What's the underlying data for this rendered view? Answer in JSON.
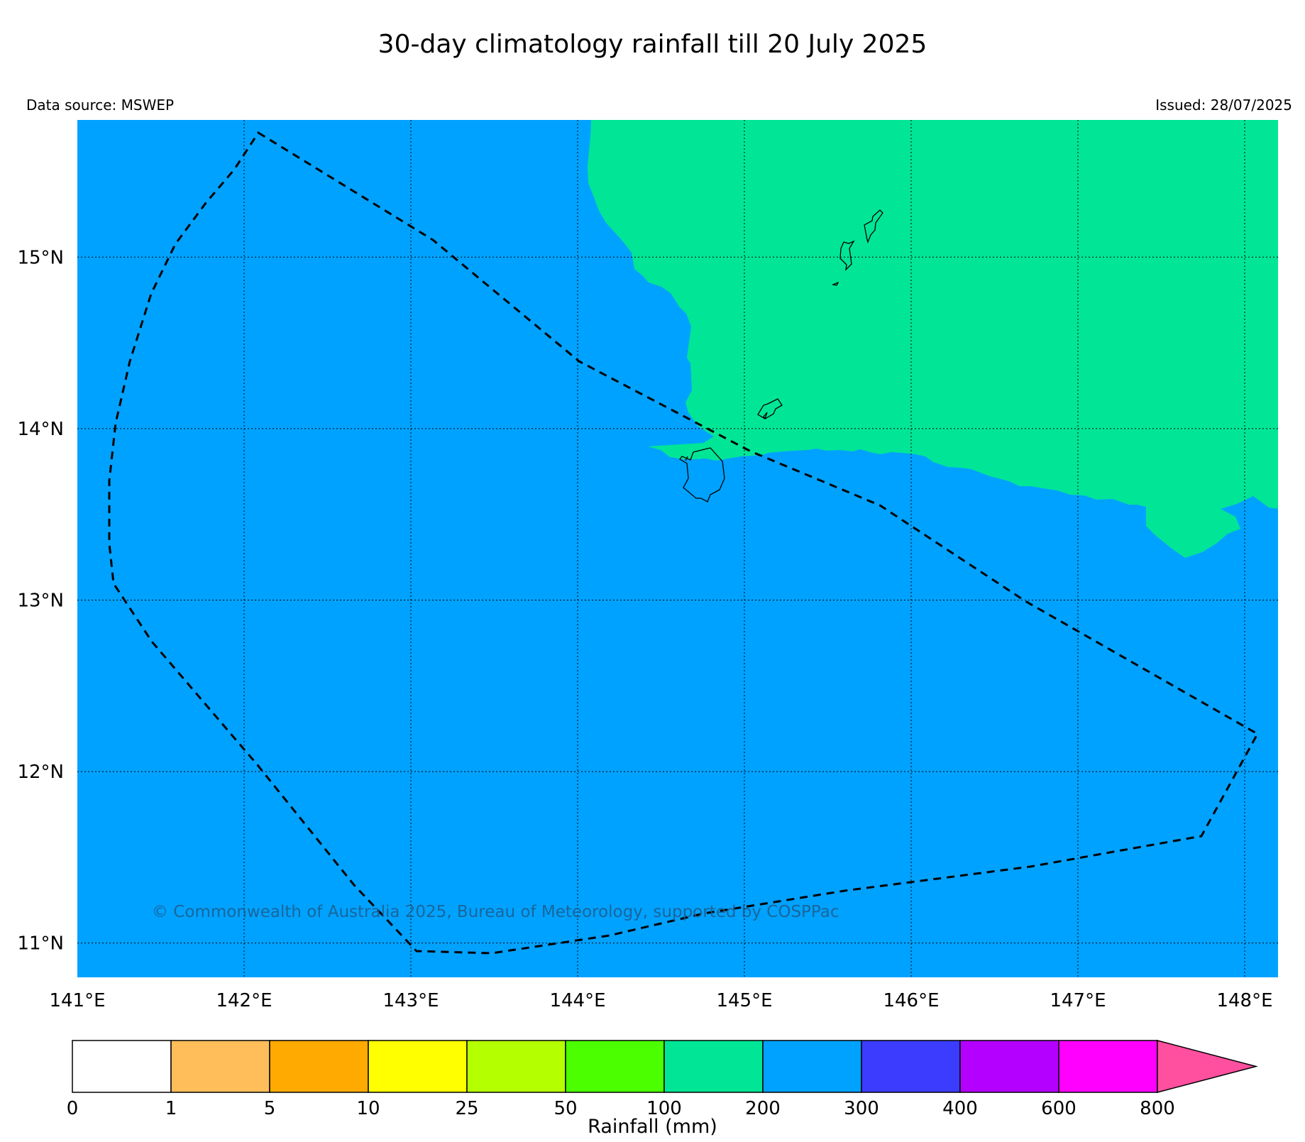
{
  "header": {
    "title": "30-day climatology rainfall till 20 July 2025",
    "data_source": "Data source: MSWEP",
    "issued": "Issued: 28/07/2025"
  },
  "map": {
    "lon_range": [
      141,
      148.2
    ],
    "lat_range": [
      10.8,
      15.8
    ],
    "lat_ticks": [
      "15°N",
      "14°N",
      "13°N",
      "12°N",
      "11°N"
    ],
    "lon_ticks": [
      "141°E",
      "142°E",
      "143°E",
      "144°E",
      "145°E",
      "146°E",
      "147°E",
      "148°E"
    ],
    "fill_colors": {
      "zone_200_300": "#00a2ff",
      "zone_100_200": "#00e696"
    },
    "boundary_style": "dashed",
    "islands_outlined": true
  },
  "copyright": "© Commonwealth of Australia 2025, Bureau of Meteorology, supported by COSPPac",
  "colorbar": {
    "title": "Rainfall (mm)",
    "ticks": [
      "0",
      "1",
      "5",
      "10",
      "25",
      "50",
      "100",
      "200",
      "300",
      "400",
      "600",
      "800"
    ],
    "colors": [
      "#ffffff",
      "#ffbe5a",
      "#ffaa00",
      "#ffff00",
      "#b4ff00",
      "#4bff00",
      "#00e696",
      "#00a2ff",
      "#3c3cff",
      "#b400ff",
      "#ff00ff",
      "#ff50a0"
    ],
    "extend": "max"
  }
}
